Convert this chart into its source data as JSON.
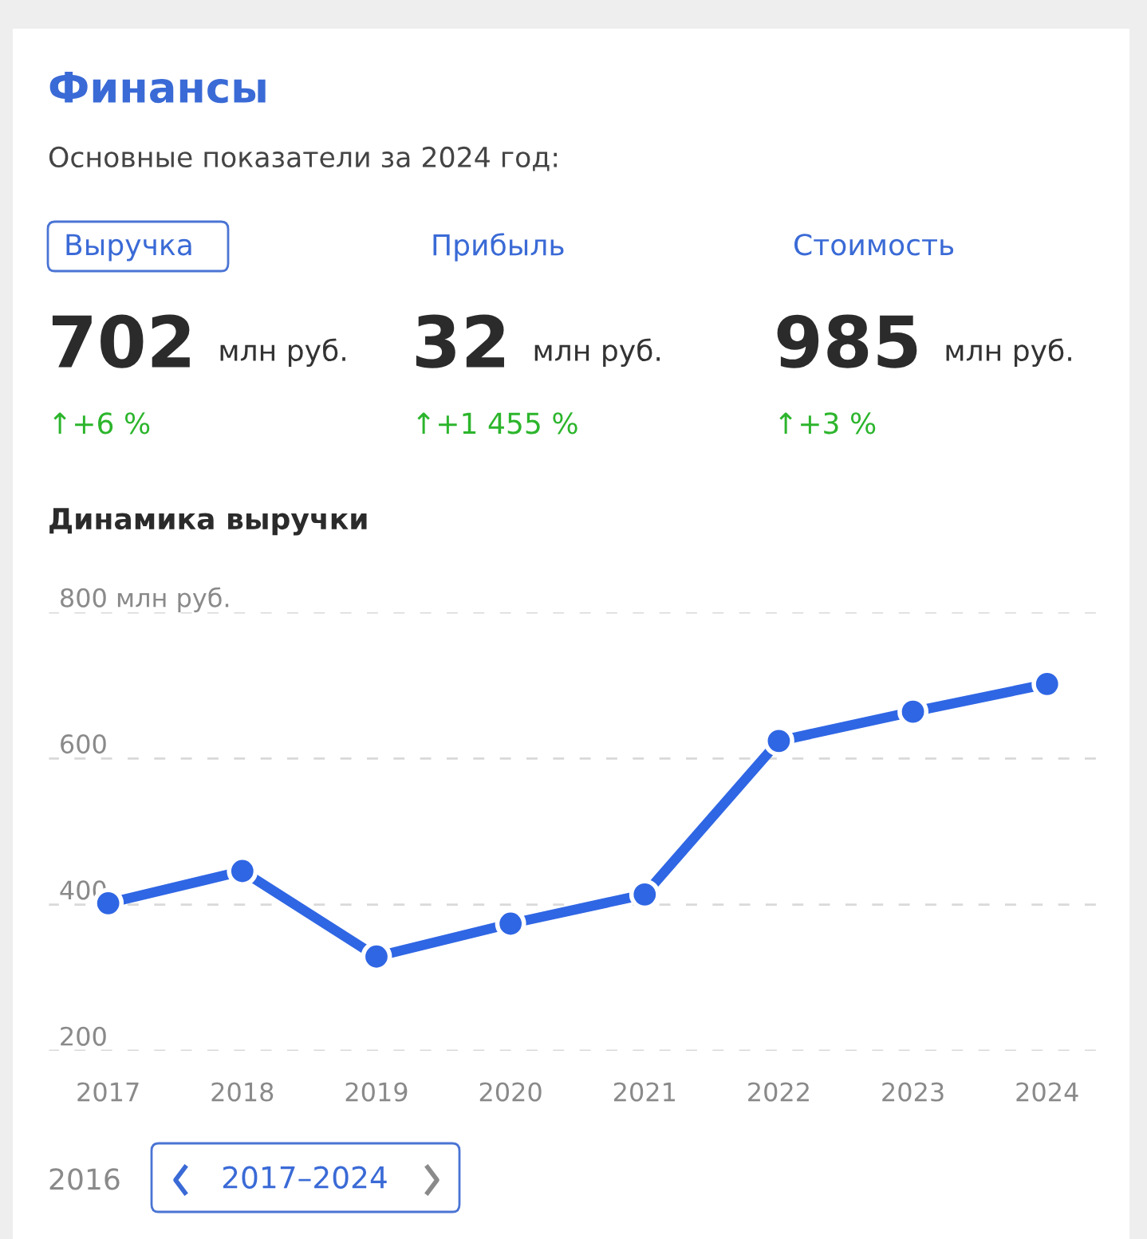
{
  "chart_data": [
    {
      "type": "other",
      "title": "Финансы",
      "subtitle": "Основные показатели за 2024 год:",
      "annotations": [
        "Выручка",
        "702",
        "млн руб.",
        "↑+6 %",
        "Прибыль",
        "32",
        "млн руб.",
        "↑+1 455 %",
        "Стоимость",
        "985",
        "млн руб.",
        "↑+3 %"
      ]
    },
    {
      "type": "line",
      "title": "Динамика выручки",
      "categories": [
        "2017",
        "2018",
        "2019",
        "2020",
        "2021",
        "2022",
        "2023",
        "2024"
      ],
      "series": [
        {
          "color": "#2f66e4",
          "values": [
            402,
            446,
            329,
            374,
            414,
            624,
            664,
            702
          ]
        }
      ],
      "ylim": [
        200,
        800
      ],
      "yticks": [
        200,
        400,
        600,
        {
          "value": 800,
          "label": "800 млн руб."
        }
      ],
      "grid": "y",
      "marker": "circle",
      "line_style": "solid",
      "annotations": [
        "2016",
        "2017–2024"
      ]
    }
  ]
}
